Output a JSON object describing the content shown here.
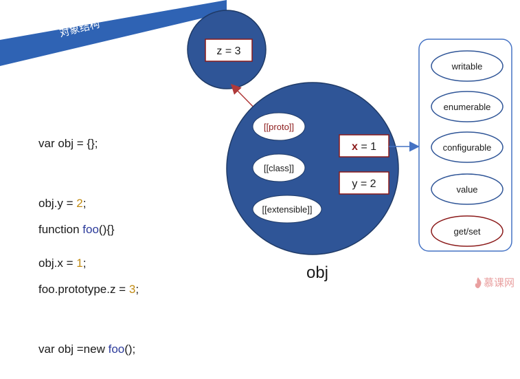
{
  "banner": {
    "title": "对象结构"
  },
  "code_block_1": {
    "line1": "var obj = {};",
    "line2_pre": "obj.y = ",
    "line2_num": "2",
    "line2_post": ";",
    "line3_pre": "obj.x = ",
    "line3_num": "1",
    "line3_post": ";"
  },
  "code_block_2": {
    "line1_pre": "function ",
    "line1_fn": "foo",
    "line1_post": "(){}",
    "line2_pre": "foo.prototype.z = ",
    "line2_num": "3",
    "line2_post": ";",
    "line3_pre": "var obj =new ",
    "line3_fn": "foo",
    "line3_post": "();"
  },
  "prototype_object": {
    "property": "z = 3"
  },
  "obj_circle": {
    "label": "obj",
    "internal_slots": [
      "[[proto]]",
      "[[class]]",
      "[[extensible]]"
    ],
    "prop_x_name": "x",
    "prop_x_value": " = 1",
    "prop_y": "y = 2"
  },
  "descriptor": {
    "items": [
      "writable",
      "enumerable",
      "configurable",
      "value",
      "get/set"
    ]
  },
  "logo": {
    "text": "慕课网"
  },
  "colors": {
    "banner": "#2f63b4",
    "circle_fill": "#2f5597",
    "circle_stroke": "#1f3a66",
    "box_stroke": "#8b1a1a",
    "arrow_red": "#b03a3a",
    "arrow_blue": "#4472c4"
  }
}
